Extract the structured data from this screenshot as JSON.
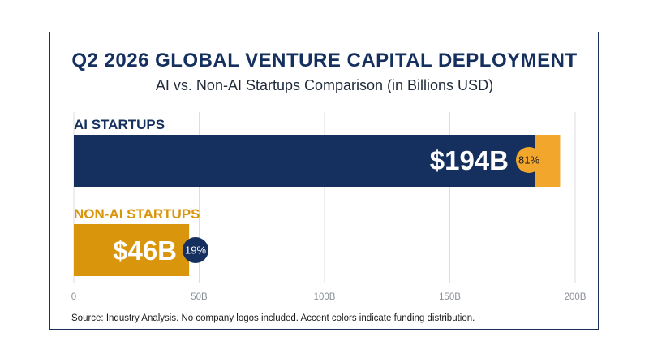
{
  "colors": {
    "ai_bar": "#15305e",
    "ai_accent": "#f2a62b",
    "nonai_bar": "#d9950c",
    "nonai_label": "#d9950c",
    "ai_label": "#15305e",
    "grid": "#dcdde0"
  },
  "chart_data": {
    "type": "bar",
    "orientation": "horizontal",
    "title": "Q2 2026 GLOBAL VENTURE CAPITAL DEPLOYMENT",
    "subtitle": "AI vs. Non-AI Startups Comparison (in Billions USD)",
    "categories": [
      "AI STARTUPS",
      "NON-AI STARTUPS"
    ],
    "values": [
      194,
      46
    ],
    "value_labels": [
      "$194B",
      "$46B"
    ],
    "share_labels": [
      "81%",
      "19%"
    ],
    "xlim": [
      0,
      200
    ],
    "xticks": [
      0,
      50,
      100,
      150,
      200
    ],
    "xtick_labels": [
      "0",
      "50B",
      "100B",
      "150B",
      "200B"
    ],
    "grid": true,
    "source": "Source: Industry Analysis. No company logos included. Accent colors indicate funding distribution."
  }
}
